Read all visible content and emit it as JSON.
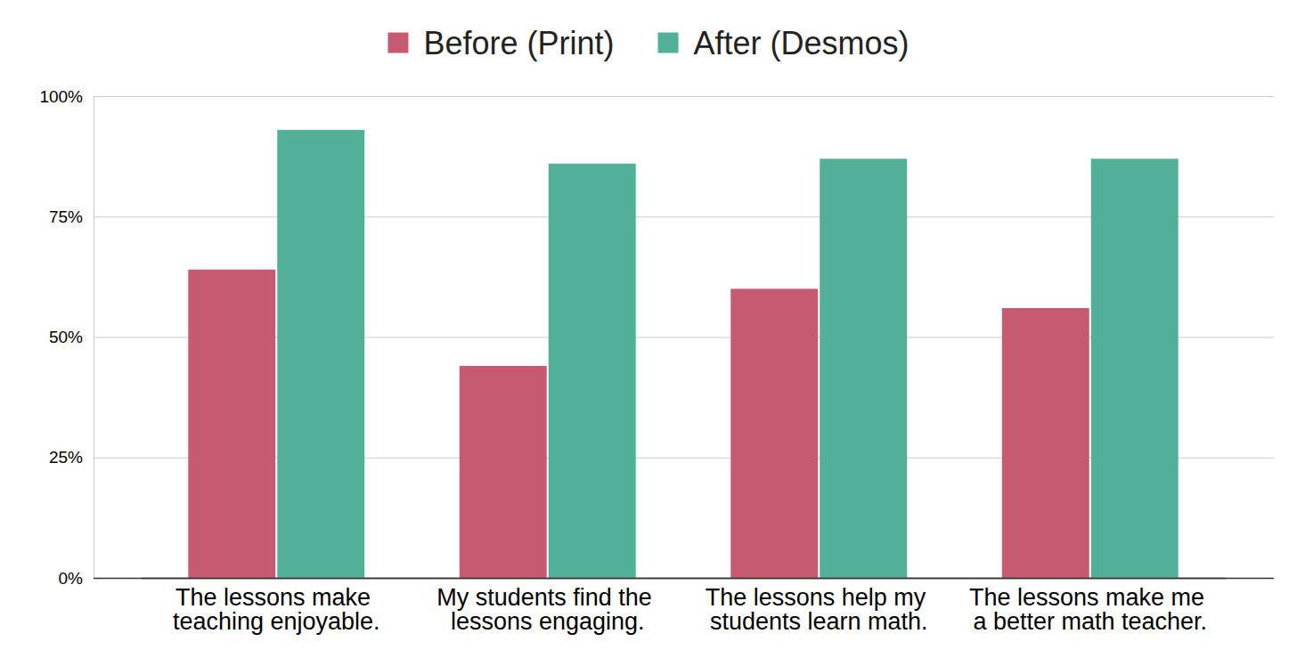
{
  "chart_data": {
    "type": "bar",
    "categories": [
      "The lessons make teaching enjoyable.",
      "My students find the lessons engaging.",
      "The lessons help my students learn math.",
      "The lessons make me a better math teacher."
    ],
    "series": [
      {
        "name": "Before (Print)",
        "color": "#c55a70",
        "values": [
          64,
          44,
          60,
          56
        ]
      },
      {
        "name": "After (Desmos)",
        "color": "#52af98",
        "values": [
          93,
          86,
          87,
          87
        ]
      }
    ],
    "ylim": [
      0,
      100
    ],
    "yticks": [
      {
        "value": 0,
        "label": "0%"
      },
      {
        "value": 25,
        "label": "25%"
      },
      {
        "value": 50,
        "label": "50%"
      },
      {
        "value": 75,
        "label": "75%"
      },
      {
        "value": 100,
        "label": "100%"
      }
    ],
    "grid": true,
    "legend": "top"
  }
}
